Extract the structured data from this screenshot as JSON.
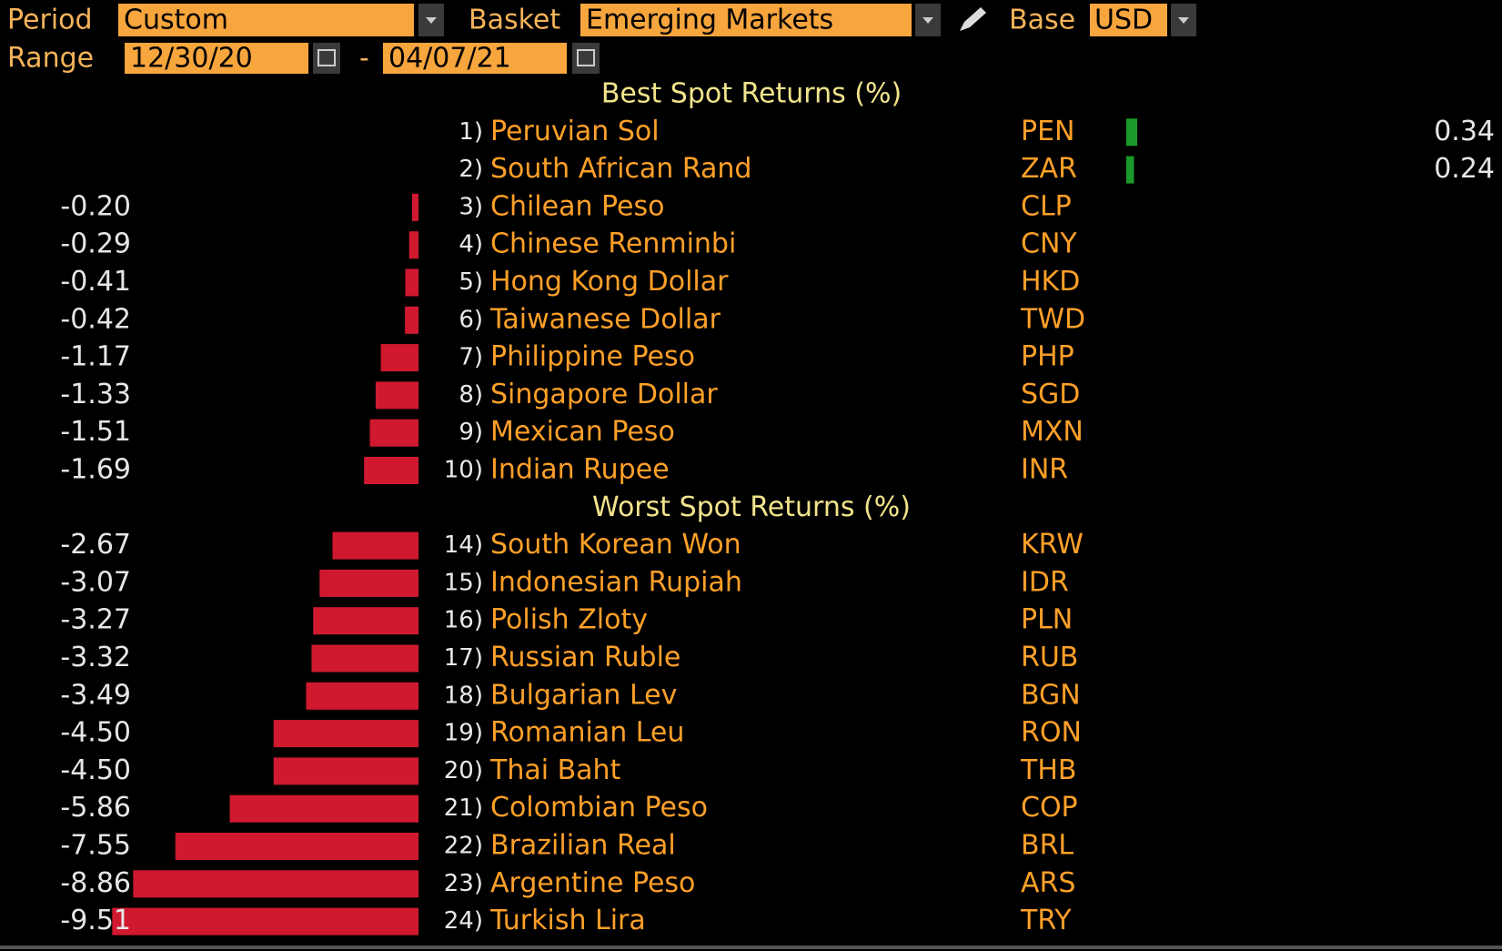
{
  "controls": {
    "period_label": "Period",
    "period_value": "Custom",
    "basket_label": "Basket",
    "basket_value": "Emerging Markets",
    "base_label": "Base",
    "base_value": "USD",
    "range_label": "Range",
    "range_start": "12/30/20",
    "range_separator": "-",
    "range_end": "04/07/21"
  },
  "sections": [
    {
      "title": "Best Spot Returns (%)",
      "rows": [
        {
          "rank": "1)",
          "name": "Peruvian Sol",
          "code": "PEN",
          "value": 0.34
        },
        {
          "rank": "2)",
          "name": "South African Rand",
          "code": "ZAR",
          "value": 0.24
        },
        {
          "rank": "3)",
          "name": "Chilean Peso",
          "code": "CLP",
          "value": -0.2,
          "value_label": "-0.20"
        },
        {
          "rank": "4)",
          "name": "Chinese Renminbi",
          "code": "CNY",
          "value": -0.29
        },
        {
          "rank": "5)",
          "name": "Hong Kong Dollar",
          "code": "HKD",
          "value": -0.41
        },
        {
          "rank": "6)",
          "name": "Taiwanese Dollar",
          "code": "TWD",
          "value": -0.42
        },
        {
          "rank": "7)",
          "name": "Philippine Peso",
          "code": "PHP",
          "value": -1.17
        },
        {
          "rank": "8)",
          "name": "Singapore Dollar",
          "code": "SGD",
          "value": -1.33
        },
        {
          "rank": "9)",
          "name": "Mexican Peso",
          "code": "MXN",
          "value": -1.51
        },
        {
          "rank": "10)",
          "name": "Indian Rupee",
          "code": "INR",
          "value": -1.69
        }
      ]
    },
    {
      "title": "Worst Spot Returns (%)",
      "rows": [
        {
          "rank": "14)",
          "name": "South Korean Won",
          "code": "KRW",
          "value": -2.67
        },
        {
          "rank": "15)",
          "name": "Indonesian Rupiah",
          "code": "IDR",
          "value": -3.07
        },
        {
          "rank": "16)",
          "name": "Polish Zloty",
          "code": "PLN",
          "value": -3.27
        },
        {
          "rank": "17)",
          "name": "Russian Ruble",
          "code": "RUB",
          "value": -3.32
        },
        {
          "rank": "18)",
          "name": "Bulgarian Lev",
          "code": "BGN",
          "value": -3.49
        },
        {
          "rank": "19)",
          "name": "Romanian Leu",
          "code": "RON",
          "value": -4.5,
          "value_label": "-4.50"
        },
        {
          "rank": "20)",
          "name": "Thai Baht",
          "code": "THB",
          "value": -4.5,
          "value_label": "-4.50"
        },
        {
          "rank": "21)",
          "name": "Colombian Peso",
          "code": "COP",
          "value": -5.86
        },
        {
          "rank": "22)",
          "name": "Brazilian Real",
          "code": "BRL",
          "value": -7.55
        },
        {
          "rank": "23)",
          "name": "Argentine Peso",
          "code": "ARS",
          "value": -8.86
        },
        {
          "rank": "24)",
          "name": "Turkish Lira",
          "code": "TRY",
          "value": -9.51
        }
      ]
    }
  ]
}
